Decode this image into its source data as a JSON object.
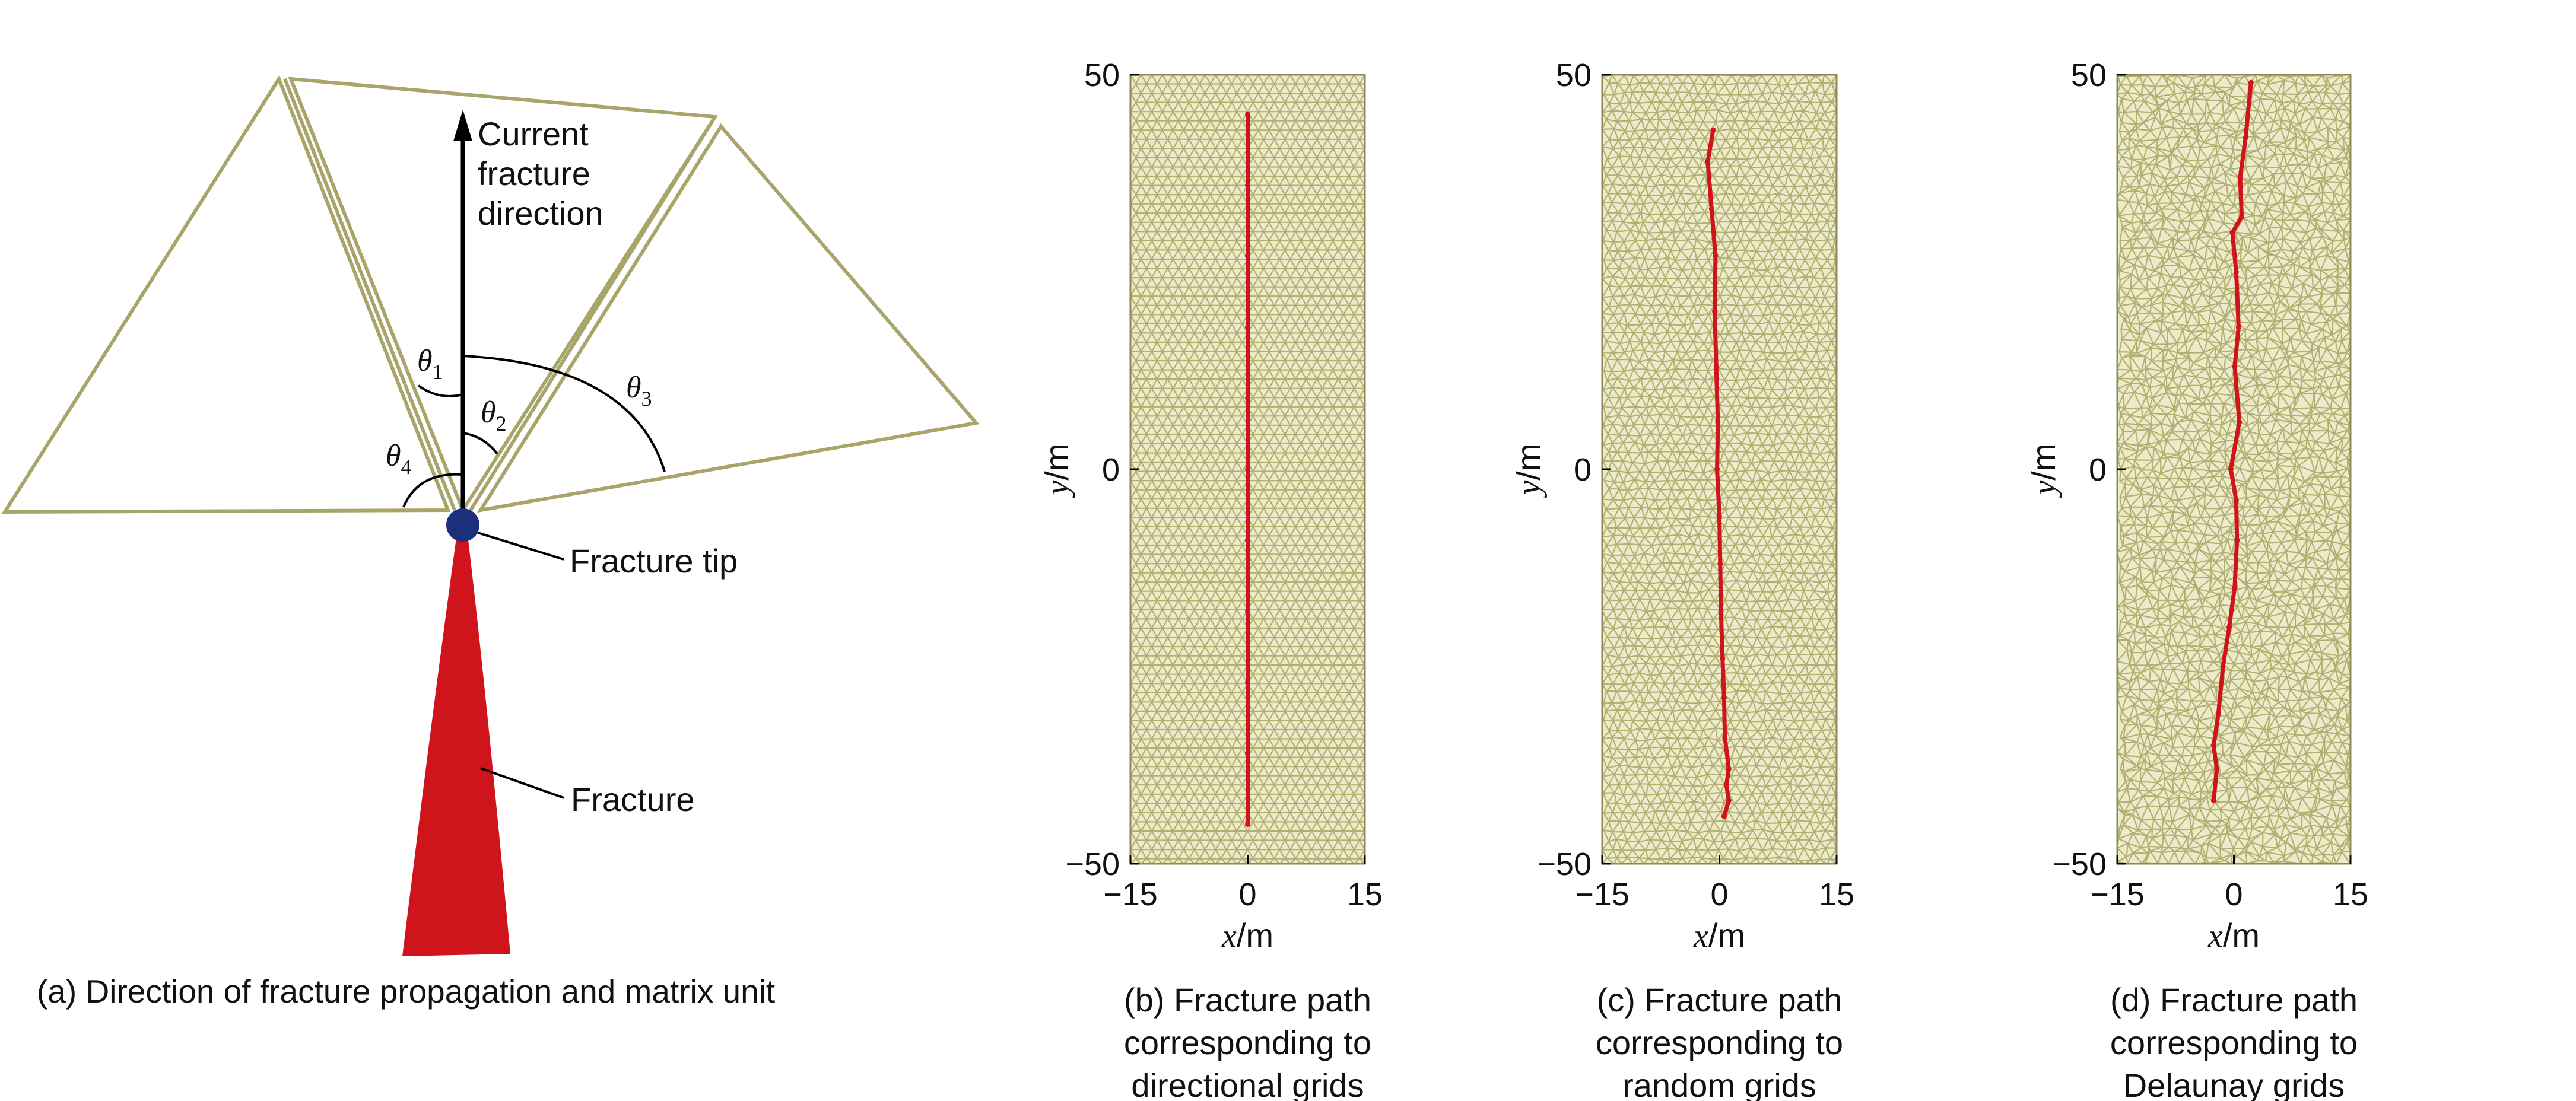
{
  "panel_a": {
    "direction_label": [
      "Current",
      "fracture",
      "direction"
    ],
    "angles": [
      "θ1",
      "θ2",
      "θ3",
      "θ4"
    ],
    "tip_label": "Fracture tip",
    "fracture_label": "Fracture",
    "caption": "(a) Direction of fracture propagation and matrix unit"
  },
  "plots": [
    {
      "id": "b",
      "caption": [
        "(b) Fracture path",
        "corresponding to",
        "directional grids"
      ]
    },
    {
      "id": "c",
      "caption": [
        "(c) Fracture path",
        "corresponding to",
        "random grids"
      ]
    },
    {
      "id": "d",
      "caption": [
        "(d) Fracture path",
        "corresponding to",
        "Delaunay grids"
      ]
    }
  ],
  "axis": {
    "xlabel_var": "x",
    "xlabel_unit": "/m",
    "ylabel_var": "y",
    "ylabel_unit": "/m",
    "xticks": [
      "−15",
      "0",
      "15"
    ],
    "yticks": [
      "50",
      "0",
      "−50"
    ]
  },
  "colors": {
    "mesh": "#b0b070",
    "mesh_bg": "#eceacb",
    "fracture": "#d0141b",
    "tip": "#1b2f7a",
    "triangle": "#a9a56a"
  },
  "chart_data": [
    {
      "type": "line",
      "name": "b",
      "xlim": [
        -15,
        15
      ],
      "ylim": [
        -50,
        50
      ],
      "x": [
        0,
        0,
        0,
        0,
        0,
        0,
        0,
        0,
        0,
        0,
        0
      ],
      "y": [
        45,
        36,
        27,
        18,
        9,
        0,
        -9,
        -18,
        -27,
        -36,
        -45
      ]
    },
    {
      "type": "line",
      "name": "c",
      "xlim": [
        -15,
        15
      ],
      "ylim": [
        -50,
        50
      ],
      "x": [
        -0.8,
        -1.5,
        -1.0,
        -0.5,
        -0.6,
        -0.4,
        -0.2,
        -0.3,
        0.0,
        0.1,
        0.2,
        0.4,
        0.6,
        0.7,
        1.2,
        0.9,
        1.2,
        0.6
      ],
      "y": [
        43,
        39,
        33,
        27,
        20,
        13,
        6,
        0,
        -6,
        -12,
        -18,
        -24,
        -29,
        -34,
        -38,
        -40,
        -42,
        -44
      ]
    },
    {
      "type": "line",
      "name": "d",
      "xlim": [
        -15,
        15
      ],
      "ylim": [
        -50,
        50
      ],
      "x": [
        2.2,
        1.5,
        0.8,
        1.0,
        -0.2,
        0.3,
        0.6,
        0.1,
        0.7,
        -0.4,
        0.3,
        0.4,
        0.1,
        -0.6,
        -1.4,
        -2.0,
        -2.6,
        -2.2,
        -2.6
      ],
      "y": [
        49,
        42,
        37,
        32,
        30,
        25,
        18,
        13,
        6,
        0,
        -4,
        -9,
        -15,
        -20,
        -25,
        -31,
        -35,
        -38,
        -42
      ]
    }
  ]
}
